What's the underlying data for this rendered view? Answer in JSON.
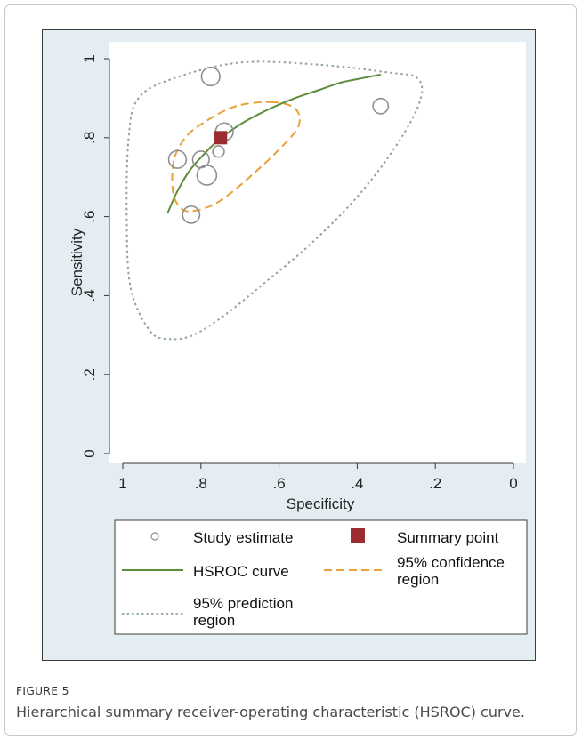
{
  "figure": {
    "label": "FIGURE 5",
    "caption": "Hierarchical summary receiver-operating characteristic (HSROC) curve."
  },
  "chart_data": {
    "type": "scatter",
    "xlabel": "Specificity",
    "ylabel": "Sensitivity",
    "xlim": [
      1,
      0
    ],
    "ylim": [
      0,
      1
    ],
    "xticks": [
      {
        "value": 1,
        "label": "1"
      },
      {
        "value": 0.8,
        "label": ".8"
      },
      {
        "value": 0.6,
        "label": ".6"
      },
      {
        "value": 0.4,
        "label": ".4"
      },
      {
        "value": 0.2,
        "label": ".2"
      },
      {
        "value": 0,
        "label": "0"
      }
    ],
    "yticks": [
      {
        "value": 0,
        "label": "0"
      },
      {
        "value": 0.2,
        "label": ".2"
      },
      {
        "value": 0.4,
        "label": ".4"
      },
      {
        "value": 0.6,
        "label": ".6"
      },
      {
        "value": 0.8,
        "label": ".8"
      },
      {
        "value": 1,
        "label": "1"
      }
    ],
    "grid": false,
    "legend_position": "bottom",
    "study_estimates": [
      {
        "specificity": 0.775,
        "sensitivity": 0.955,
        "weight": 0.9
      },
      {
        "specificity": 0.74,
        "sensitivity": 0.815,
        "weight": 0.85
      },
      {
        "specificity": 0.34,
        "sensitivity": 0.88,
        "weight": 0.65
      },
      {
        "specificity": 0.755,
        "sensitivity": 0.765,
        "weight": 0.35
      },
      {
        "specificity": 0.86,
        "sensitivity": 0.745,
        "weight": 0.85
      },
      {
        "specificity": 0.8,
        "sensitivity": 0.745,
        "weight": 0.75
      },
      {
        "specificity": 0.785,
        "sensitivity": 0.705,
        "weight": 1.0
      },
      {
        "specificity": 0.825,
        "sensitivity": 0.605,
        "weight": 0.8
      }
    ],
    "summary_point": {
      "specificity": 0.75,
      "sensitivity": 0.8
    },
    "hsroc_curve": [
      [
        0.885,
        0.61
      ],
      [
        0.86,
        0.665
      ],
      [
        0.83,
        0.715
      ],
      [
        0.8,
        0.75
      ],
      [
        0.76,
        0.79
      ],
      [
        0.72,
        0.82
      ],
      [
        0.68,
        0.845
      ],
      [
        0.62,
        0.875
      ],
      [
        0.56,
        0.9
      ],
      [
        0.5,
        0.92
      ],
      [
        0.44,
        0.94
      ],
      [
        0.38,
        0.952
      ],
      [
        0.34,
        0.96
      ]
    ],
    "confidence_region": [
      [
        0.62,
        0.89
      ],
      [
        0.56,
        0.875
      ],
      [
        0.55,
        0.83
      ],
      [
        0.6,
        0.77
      ],
      [
        0.67,
        0.705
      ],
      [
        0.73,
        0.655
      ],
      [
        0.78,
        0.625
      ],
      [
        0.84,
        0.615
      ],
      [
        0.87,
        0.655
      ],
      [
        0.87,
        0.74
      ],
      [
        0.84,
        0.8
      ],
      [
        0.79,
        0.84
      ],
      [
        0.71,
        0.88
      ],
      [
        0.62,
        0.89
      ]
    ],
    "prediction_region": [
      [
        0.87,
        0.95
      ],
      [
        0.7,
        0.99
      ],
      [
        0.5,
        0.985
      ],
      [
        0.32,
        0.965
      ],
      [
        0.245,
        0.95
      ],
      [
        0.24,
        0.89
      ],
      [
        0.3,
        0.78
      ],
      [
        0.4,
        0.65
      ],
      [
        0.52,
        0.53
      ],
      [
        0.64,
        0.43
      ],
      [
        0.74,
        0.35
      ],
      [
        0.82,
        0.3
      ],
      [
        0.88,
        0.29
      ],
      [
        0.93,
        0.31
      ],
      [
        0.98,
        0.42
      ],
      [
        0.99,
        0.6
      ],
      [
        0.985,
        0.8
      ],
      [
        0.96,
        0.9
      ],
      [
        0.87,
        0.95
      ]
    ],
    "legend": [
      {
        "key": "study",
        "label": "Study estimate"
      },
      {
        "key": "summary",
        "label": "Summary point"
      },
      {
        "key": "hsroc",
        "label": "HSROC curve"
      },
      {
        "key": "confidence",
        "label_line1": "95% confidence",
        "label_line2": "region"
      },
      {
        "key": "prediction",
        "label_line1": "95% prediction",
        "label_line2": "region"
      }
    ],
    "colors": {
      "background": "#e4eef2",
      "plot_area": "#ffffff",
      "study_marker": "#909090",
      "summary_point": "#9b2d30",
      "hsroc_curve": "#5e8c3a",
      "confidence_region": "#e8a23a",
      "prediction_region": "#8fa3a6"
    }
  }
}
